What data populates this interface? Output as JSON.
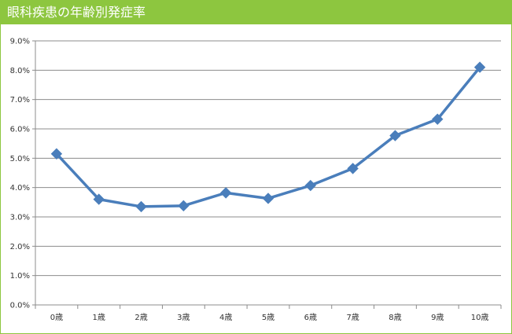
{
  "title": "眼科疾患の年齢別発症率",
  "colors": {
    "title_bg": "#8dc63f",
    "title_text": "#ffffff",
    "line": "#4a7ebb",
    "grid": "#8c8c8c",
    "axis": "#8c8c8c"
  },
  "chart_data": {
    "type": "line",
    "categories": [
      "0歳",
      "1歳",
      "2歳",
      "3歳",
      "4歳",
      "5歳",
      "6歳",
      "7歳",
      "8歳",
      "9歳",
      "10歳"
    ],
    "series": [
      {
        "values": [
          5.15,
          3.6,
          3.35,
          3.38,
          3.82,
          3.63,
          4.07,
          4.65,
          5.77,
          6.33,
          8.1
        ]
      }
    ],
    "y_ticks": [
      "0.0%",
      "1.0%",
      "2.0%",
      "3.0%",
      "4.0%",
      "5.0%",
      "6.0%",
      "7.0%",
      "8.0%",
      "9.0%"
    ],
    "ylim": [
      0,
      9
    ],
    "grid": true,
    "legend": "none",
    "marker": "diamond"
  }
}
